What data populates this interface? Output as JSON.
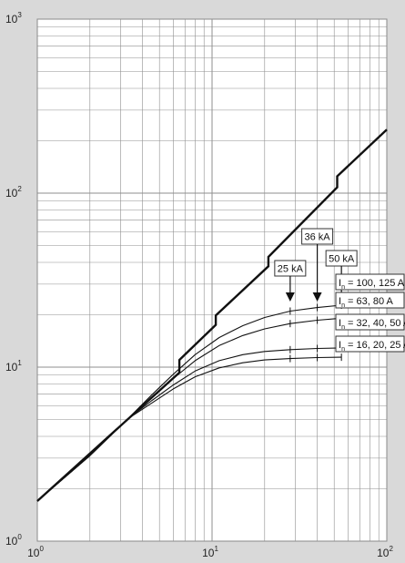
{
  "chart_data": {
    "type": "line",
    "x_scale": "log",
    "y_scale": "log",
    "xlim": [
      1,
      100
    ],
    "ylim": [
      1,
      1000
    ],
    "grid": true,
    "x_ticks": [
      {
        "base": "10",
        "exp": "0"
      },
      {
        "base": "10",
        "exp": "1"
      },
      {
        "base": "10",
        "exp": "2"
      }
    ],
    "y_ticks": [
      {
        "base": "10",
        "exp": "0"
      },
      {
        "base": "10",
        "exp": "1"
      },
      {
        "base": "10",
        "exp": "2"
      },
      {
        "base": "10",
        "exp": "3"
      }
    ],
    "envelope": {
      "x": [
        1,
        6.5,
        6.5,
        10.5,
        10.5,
        21,
        21,
        52,
        52,
        100
      ],
      "y": [
        1.7,
        9.3,
        11,
        17.5,
        19.8,
        38,
        43,
        108,
        125,
        232
      ]
    },
    "series": [
      {
        "label_main": "I",
        "label_sub": "n",
        "label_rest": " = 100, 125 A",
        "x": [
          1,
          2,
          3.3,
          4.5,
          6,
          8,
          11,
          15,
          20,
          28,
          40,
          55
        ],
        "y": [
          1.7,
          3.1,
          5.05,
          6.9,
          9.1,
          11.8,
          14.8,
          17.3,
          19.3,
          21.0,
          22.0,
          22.7
        ]
      },
      {
        "label_main": "I",
        "label_sub": "n",
        "label_rest": " = 63, 80 A",
        "x": [
          1,
          2,
          3.3,
          4.5,
          6,
          8,
          11,
          15,
          20,
          28,
          40,
          55
        ],
        "y": [
          1.7,
          3.1,
          5.05,
          6.7,
          8.6,
          10.9,
          13.3,
          15.2,
          16.6,
          17.8,
          18.6,
          19.1
        ]
      },
      {
        "label_main": "I",
        "label_sub": "n",
        "label_rest": " = 32, 40, 50 A",
        "x": [
          1,
          2,
          3.3,
          4.5,
          6,
          8,
          11,
          15,
          20,
          28,
          40,
          55
        ],
        "y": [
          1.7,
          3.1,
          5.05,
          6.4,
          7.9,
          9.5,
          10.9,
          11.8,
          12.3,
          12.6,
          12.8,
          12.9
        ]
      },
      {
        "label_main": "I",
        "label_sub": "n",
        "label_rest": " = 16, 20, 25 A",
        "x": [
          1,
          2,
          3.3,
          4.5,
          6,
          8,
          11,
          15,
          20,
          28,
          40,
          55
        ],
        "y": [
          1.7,
          3.1,
          5.05,
          6.2,
          7.5,
          8.8,
          9.9,
          10.6,
          11.0,
          11.2,
          11.35,
          11.4
        ]
      }
    ],
    "annotations": [
      {
        "text": "25 kA",
        "x": 28
      },
      {
        "text": "36 kA",
        "x": 40
      },
      {
        "text": "50 kA",
        "x": 55
      }
    ]
  }
}
